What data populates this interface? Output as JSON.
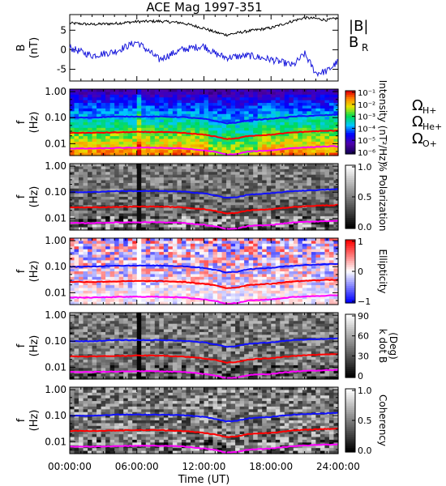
{
  "title": "ACE Mag 1997-351",
  "x_axis": {
    "label": "Time (UT)",
    "ticks": [
      "00:00:00",
      "06:00:00",
      "12:00:00",
      "18:00:00",
      "24:00:00"
    ]
  },
  "colors": {
    "B_total": "#000000",
    "B_R": "#1a1adc",
    "H_plus": "#1010ff",
    "He_plus": "#ff0000",
    "O_plus": "#ff00ff"
  },
  "chart_data": [
    {
      "type": "line",
      "panel": "B",
      "ylabel": [
        "B",
        "(nT)"
      ],
      "ylim": [
        -8,
        9
      ],
      "y_ticks": [
        "5",
        "0",
        "-5"
      ],
      "legend": [
        {
          "label": "|B|",
          "color": "#000000"
        },
        {
          "label": "B",
          "sub": "R",
          "color": "#1a1adc"
        }
      ],
      "x_hours": [
        0,
        2,
        4,
        6,
        8,
        10,
        12,
        13,
        14,
        16,
        18,
        20,
        21,
        22,
        23,
        24
      ],
      "series": [
        {
          "name": "|B|",
          "values": [
            6.8,
            6.5,
            6.7,
            7.2,
            7.3,
            6.9,
            5.5,
            4.5,
            3.8,
            4.8,
            5.6,
            7.4,
            8.2,
            8.0,
            7.6,
            8.1
          ]
        },
        {
          "name": "B_R",
          "values": [
            0.5,
            -1.5,
            -0.5,
            2.0,
            -2.5,
            0.0,
            1.0,
            -1.0,
            -2.0,
            -1.5,
            -2.5,
            -4.0,
            -1.0,
            -6.0,
            -5.5,
            -3.0
          ]
        }
      ]
    },
    {
      "type": "heatmap",
      "panel": "Intensity",
      "ylabel": [
        "f",
        "(Hz)"
      ],
      "y_ticks": [
        "1.00",
        "0.10",
        "0.01"
      ],
      "colorbar_label": "Intensity (nT²/Hz)",
      "colorbar_ticks": [
        "10⁻¹",
        "10⁻²",
        "10⁻³",
        "10⁻⁴",
        "10⁻⁵",
        "10⁻⁶"
      ],
      "legend": [
        {
          "label": "Ω",
          "sub": "H+",
          "color": "#1010ff"
        },
        {
          "label": "Ω",
          "sub": "He+",
          "color": "#ff0000"
        },
        {
          "label": "Ω",
          "sub": "O+",
          "color": "#ff00ff"
        }
      ]
    },
    {
      "type": "heatmap",
      "panel": "Polarization",
      "ylabel": [
        "f",
        "(Hz)"
      ],
      "y_ticks": [
        "1.00",
        "0.10",
        "0.01"
      ],
      "colorbar_label": "% Polarization",
      "colorbar_ticks": [
        "1.0",
        "0.5",
        "0.0"
      ]
    },
    {
      "type": "heatmap",
      "panel": "Ellipticity",
      "ylabel": [
        "f",
        "(Hz)"
      ],
      "y_ticks": [
        "1.00",
        "0.10",
        "0.01"
      ],
      "colorbar_label": "Ellipticity",
      "colorbar_ticks": [
        "1",
        "0",
        "−1"
      ]
    },
    {
      "type": "heatmap",
      "panel": "k dot B",
      "ylabel": [
        "f",
        "(Hz)"
      ],
      "y_ticks": [
        "1.00",
        "0.10",
        "0.01"
      ],
      "colorbar_label": "k dot B",
      "colorbar_sub": "(Deg)",
      "colorbar_ticks": [
        "90",
        "60",
        "30",
        "0"
      ]
    },
    {
      "type": "heatmap",
      "panel": "Coherency",
      "ylabel": [
        "f",
        "(Hz)"
      ],
      "y_ticks": [
        "1.00",
        "0.10",
        "0.01"
      ],
      "colorbar_label": "Coherency",
      "colorbar_ticks": [
        "1.0",
        "0.5",
        "0.0"
      ]
    }
  ],
  "gyrofrequency_lines": {
    "x_hours": [
      0,
      2,
      4,
      6,
      8,
      10,
      12,
      13,
      14,
      15,
      16,
      18,
      20,
      22,
      24
    ],
    "H_plus_Hz": [
      0.1,
      0.1,
      0.11,
      0.11,
      0.11,
      0.105,
      0.09,
      0.075,
      0.06,
      0.065,
      0.08,
      0.09,
      0.11,
      0.12,
      0.13
    ],
    "He_plus_Hz": [
      0.026,
      0.026,
      0.027,
      0.028,
      0.028,
      0.026,
      0.022,
      0.019,
      0.015,
      0.016,
      0.02,
      0.022,
      0.027,
      0.03,
      0.032
    ],
    "O_plus_Hz": [
      0.0065,
      0.0065,
      0.0068,
      0.007,
      0.007,
      0.0066,
      0.0055,
      0.0048,
      0.0038,
      0.004,
      0.005,
      0.0055,
      0.0068,
      0.0075,
      0.008
    ]
  }
}
